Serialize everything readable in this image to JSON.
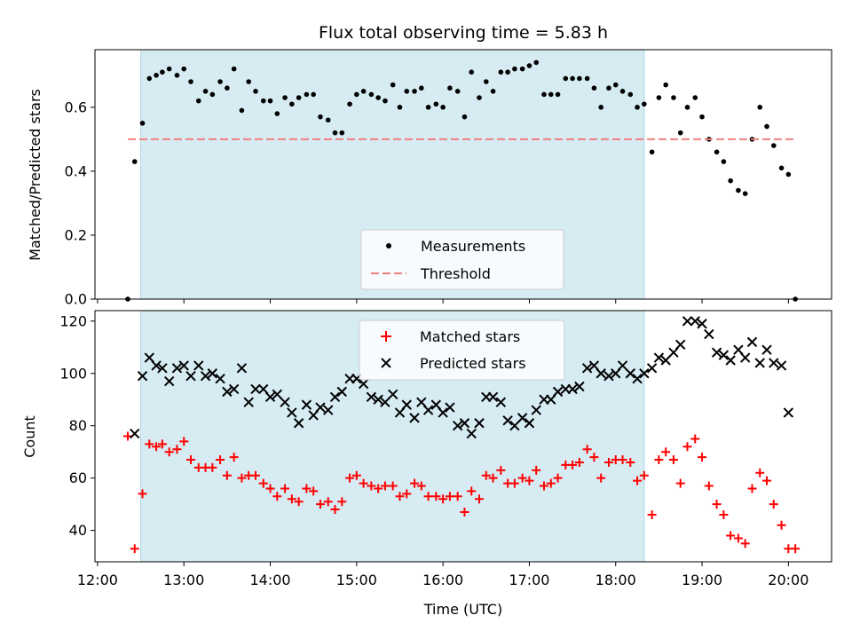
{
  "chart_data": {
    "title": "Flux total observing time = 5.83 h",
    "xlabel": "Time (UTC)",
    "x_unit": "hours UTC",
    "xlim": [
      11.97,
      20.5
    ],
    "xticks": [
      12,
      13,
      14,
      15,
      16,
      17,
      18,
      19,
      20
    ],
    "xtick_labels": [
      "12:00",
      "13:00",
      "14:00",
      "15:00",
      "16:00",
      "17:00",
      "18:00",
      "19:00",
      "20:00"
    ],
    "shaded_interval": [
      12.5,
      18.33
    ],
    "colors": {
      "shade": "#add8e6",
      "measurements": "#000000",
      "threshold": "#f08080",
      "matched": "#ff0000",
      "predicted": "#000000"
    },
    "panels": [
      {
        "id": "ratio",
        "type": "scatter",
        "ylabel": "Matched/Predicted stars",
        "ylim": [
          0,
          0.78
        ],
        "yticks": [
          0.0,
          0.2,
          0.4,
          0.6
        ],
        "ytick_labels": [
          "0.0",
          "0.2",
          "0.4",
          "0.6"
        ],
        "legend": {
          "placement": "lower-center",
          "entries": [
            {
              "label": "Measurements",
              "marker": "dot",
              "color": "#000000"
            },
            {
              "label": "Threshold",
              "marker": "dashed-line",
              "color": "#f08080"
            }
          ]
        },
        "threshold": 0.5,
        "series": [
          {
            "name": "Measurements",
            "x": [
              12.35,
              12.43,
              12.52,
              12.6,
              12.68,
              12.75,
              12.83,
              12.92,
              13.0,
              13.08,
              13.17,
              13.25,
              13.33,
              13.42,
              13.5,
              13.58,
              13.67,
              13.75,
              13.83,
              13.92,
              14.0,
              14.08,
              14.17,
              14.25,
              14.33,
              14.42,
              14.5,
              14.58,
              14.67,
              14.75,
              14.83,
              14.92,
              15.0,
              15.08,
              15.17,
              15.25,
              15.33,
              15.42,
              15.5,
              15.58,
              15.67,
              15.75,
              15.83,
              15.92,
              16.0,
              16.08,
              16.17,
              16.25,
              16.33,
              16.42,
              16.5,
              16.58,
              16.67,
              16.75,
              16.83,
              16.92,
              17.0,
              17.08,
              17.17,
              17.25,
              17.33,
              17.42,
              17.5,
              17.58,
              17.67,
              17.75,
              17.83,
              17.92,
              18.0,
              18.08,
              18.17,
              18.25,
              18.33,
              18.42,
              18.5,
              18.58,
              18.67,
              18.75,
              18.83,
              18.92,
              19.0,
              19.08,
              19.17,
              19.25,
              19.33,
              19.42,
              19.5,
              19.58,
              19.67,
              19.75,
              19.83,
              19.92,
              20.0,
              20.08
            ],
            "y": [
              0.0,
              0.43,
              0.55,
              0.69,
              0.7,
              0.71,
              0.72,
              0.7,
              0.72,
              0.68,
              0.62,
              0.65,
              0.64,
              0.68,
              0.66,
              0.72,
              0.59,
              0.68,
              0.65,
              0.62,
              0.62,
              0.58,
              0.63,
              0.61,
              0.63,
              0.64,
              0.64,
              0.57,
              0.56,
              0.52,
              0.52,
              0.61,
              0.64,
              0.65,
              0.64,
              0.63,
              0.62,
              0.67,
              0.6,
              0.65,
              0.65,
              0.66,
              0.6,
              0.61,
              0.6,
              0.66,
              0.65,
              0.57,
              0.71,
              0.63,
              0.68,
              0.65,
              0.71,
              0.71,
              0.72,
              0.72,
              0.73,
              0.74,
              0.64,
              0.64,
              0.64,
              0.69,
              0.69,
              0.69,
              0.69,
              0.66,
              0.6,
              0.66,
              0.67,
              0.65,
              0.64,
              0.6,
              0.61,
              0.46,
              0.63,
              0.67,
              0.63,
              0.52,
              0.6,
              0.63,
              0.57,
              0.5,
              0.46,
              0.43,
              0.37,
              0.34,
              0.33,
              0.5,
              0.6,
              0.54,
              0.48,
              0.41,
              0.39,
              0.0
            ]
          }
        ]
      },
      {
        "id": "counts",
        "type": "scatter",
        "ylabel": "Count",
        "ylim": [
          28,
          124
        ],
        "yticks": [
          40,
          60,
          80,
          100,
          120
        ],
        "ytick_labels": [
          "40",
          "60",
          "80",
          "100",
          "120"
        ],
        "legend": {
          "placement": "upper-center",
          "entries": [
            {
              "label": "Matched stars",
              "marker": "plus",
              "color": "#ff0000"
            },
            {
              "label": "Predicted stars",
              "marker": "x",
              "color": "#000000"
            }
          ]
        },
        "series": [
          {
            "name": "Matched stars",
            "marker": "plus",
            "x": [
              12.35,
              12.43,
              12.52,
              12.6,
              12.68,
              12.75,
              12.83,
              12.92,
              13.0,
              13.08,
              13.17,
              13.25,
              13.33,
              13.42,
              13.5,
              13.58,
              13.67,
              13.75,
              13.83,
              13.92,
              14.0,
              14.08,
              14.17,
              14.25,
              14.33,
              14.42,
              14.5,
              14.58,
              14.67,
              14.75,
              14.83,
              14.92,
              15.0,
              15.08,
              15.17,
              15.25,
              15.33,
              15.42,
              15.5,
              15.58,
              15.67,
              15.75,
              15.83,
              15.92,
              16.0,
              16.08,
              16.17,
              16.25,
              16.33,
              16.42,
              16.5,
              16.58,
              16.67,
              16.75,
              16.83,
              16.92,
              17.0,
              17.08,
              17.17,
              17.25,
              17.33,
              17.42,
              17.5,
              17.58,
              17.67,
              17.75,
              17.83,
              17.92,
              18.0,
              18.08,
              18.17,
              18.25,
              18.33,
              18.42,
              18.5,
              18.58,
              18.67,
              18.75,
              18.83,
              18.92,
              19.0,
              19.08,
              19.17,
              19.25,
              19.33,
              19.42,
              19.5,
              19.58,
              19.67,
              19.75,
              19.83,
              19.92,
              20.0,
              20.08
            ],
            "y": [
              76,
              33,
              54,
              73,
              72,
              73,
              70,
              71,
              74,
              67,
              64,
              64,
              64,
              67,
              61,
              68,
              60,
              61,
              61,
              58,
              56,
              53,
              56,
              52,
              51,
              56,
              55,
              50,
              51,
              48,
              51,
              60,
              61,
              58,
              57,
              56,
              57,
              57,
              53,
              54,
              58,
              57,
              53,
              53,
              52,
              53,
              53,
              47,
              55,
              52,
              61,
              60,
              63,
              58,
              58,
              60,
              59,
              63,
              57,
              58,
              60,
              65,
              65,
              66,
              71,
              68,
              60,
              66,
              67,
              67,
              66,
              59,
              61,
              46,
              67,
              70,
              67,
              58,
              72,
              75,
              68,
              57,
              50,
              46,
              38,
              37,
              35,
              56,
              62,
              59,
              50,
              42,
              33,
              33
            ]
          },
          {
            "name": "Predicted stars",
            "marker": "x",
            "x": [
              12.43,
              12.52,
              12.6,
              12.68,
              12.75,
              12.83,
              12.92,
              13.0,
              13.08,
              13.17,
              13.25,
              13.33,
              13.42,
              13.5,
              13.58,
              13.67,
              13.75,
              13.83,
              13.92,
              14.0,
              14.08,
              14.17,
              14.25,
              14.33,
              14.42,
              14.5,
              14.58,
              14.67,
              14.75,
              14.83,
              14.92,
              15.0,
              15.08,
              15.17,
              15.25,
              15.33,
              15.42,
              15.5,
              15.58,
              15.67,
              15.75,
              15.83,
              15.92,
              16.0,
              16.08,
              16.17,
              16.25,
              16.33,
              16.42,
              16.5,
              16.58,
              16.67,
              16.75,
              16.83,
              16.92,
              17.0,
              17.08,
              17.17,
              17.25,
              17.33,
              17.42,
              17.5,
              17.58,
              17.67,
              17.75,
              17.83,
              17.92,
              18.0,
              18.08,
              18.17,
              18.25,
              18.33,
              18.42,
              18.5,
              18.58,
              18.67,
              18.75,
              18.83,
              18.92,
              19.0,
              19.08,
              19.17,
              19.25,
              19.33,
              19.42,
              19.5,
              19.58,
              19.67,
              19.75,
              19.83,
              19.92,
              20.0
            ],
            "y": [
              77,
              99,
              106,
              103,
              102,
              97,
              102,
              103,
              99,
              103,
              99,
              100,
              98,
              93,
              94,
              102,
              89,
              94,
              94,
              91,
              92,
              89,
              85,
              81,
              88,
              84,
              87,
              86,
              91,
              93,
              98,
              98,
              96,
              91,
              90,
              89,
              92,
              85,
              88,
              83,
              89,
              86,
              88,
              85,
              87,
              80,
              81,
              77,
              81,
              91,
              91,
              89,
              82,
              80,
              83,
              81,
              86,
              90,
              90,
              93,
              94,
              94,
              95,
              102,
              103,
              100,
              99,
              100,
              103,
              100,
              98,
              100,
              102,
              106,
              105,
              108,
              111,
              120,
              120,
              119,
              115,
              108,
              107,
              105,
              109,
              106,
              112,
              104,
              109,
              104,
              103,
              85
            ]
          }
        ]
      }
    ]
  }
}
